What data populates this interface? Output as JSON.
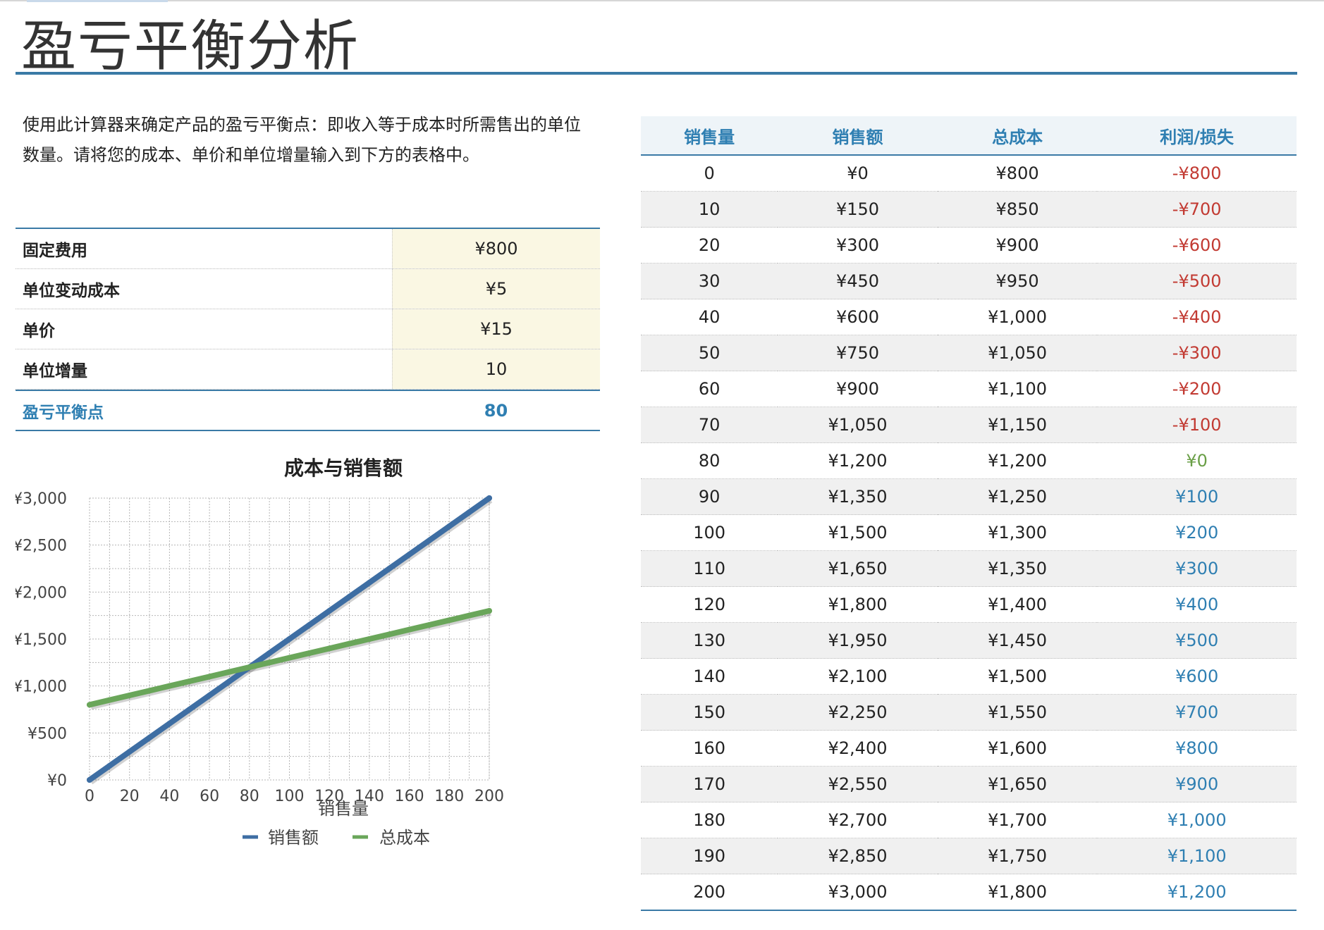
{
  "title": "盈亏平衡分析",
  "description": "使用此计算器来确定产品的盈亏平衡点：即收入等于成本时所需售出的单位数量。请将您的成本、单价和单位增量输入到下方的表格中。",
  "inputs": [
    {
      "label": "固定费用",
      "value": "¥800"
    },
    {
      "label": "单位变动成本",
      "value": "¥5"
    },
    {
      "label": "单价",
      "value": "¥15"
    },
    {
      "label": "单位增量",
      "value": "10"
    }
  ],
  "result": {
    "label": "盈亏平衡点",
    "value": "80"
  },
  "table": {
    "headers": [
      "销售量",
      "销售额",
      "总成本",
      "利润/损失"
    ],
    "rows": [
      [
        "0",
        "¥0",
        "¥800",
        "-¥800"
      ],
      [
        "10",
        "¥150",
        "¥850",
        "-¥700"
      ],
      [
        "20",
        "¥300",
        "¥900",
        "-¥600"
      ],
      [
        "30",
        "¥450",
        "¥950",
        "-¥500"
      ],
      [
        "40",
        "¥600",
        "¥1,000",
        "-¥400"
      ],
      [
        "50",
        "¥750",
        "¥1,050",
        "-¥300"
      ],
      [
        "60",
        "¥900",
        "¥1,100",
        "-¥200"
      ],
      [
        "70",
        "¥1,050",
        "¥1,150",
        "-¥100"
      ],
      [
        "80",
        "¥1,200",
        "¥1,200",
        "¥0"
      ],
      [
        "90",
        "¥1,350",
        "¥1,250",
        "¥100"
      ],
      [
        "100",
        "¥1,500",
        "¥1,300",
        "¥200"
      ],
      [
        "110",
        "¥1,650",
        "¥1,350",
        "¥300"
      ],
      [
        "120",
        "¥1,800",
        "¥1,400",
        "¥400"
      ],
      [
        "130",
        "¥1,950",
        "¥1,450",
        "¥500"
      ],
      [
        "140",
        "¥2,100",
        "¥1,500",
        "¥600"
      ],
      [
        "150",
        "¥2,250",
        "¥1,550",
        "¥700"
      ],
      [
        "160",
        "¥2,400",
        "¥1,600",
        "¥800"
      ],
      [
        "170",
        "¥2,550",
        "¥1,650",
        "¥900"
      ],
      [
        "180",
        "¥2,700",
        "¥1,700",
        "¥1,000"
      ],
      [
        "190",
        "¥2,850",
        "¥1,750",
        "¥1,100"
      ],
      [
        "200",
        "¥3,000",
        "¥1,800",
        "¥1,200"
      ]
    ]
  },
  "colors": {
    "accent": "#3a7aa6",
    "loss": "#c23a32",
    "profit": "#2f7fb2",
    "breakeven": "#6a9f47",
    "input_fill": "#faf7e3"
  },
  "chart_data": {
    "type": "line",
    "title": "成本与销售额",
    "xlabel": "销售量",
    "ylabel": "",
    "x": [
      0,
      10,
      20,
      30,
      40,
      50,
      60,
      70,
      80,
      90,
      100,
      110,
      120,
      130,
      140,
      150,
      160,
      170,
      180,
      190,
      200
    ],
    "xlim": [
      0,
      200
    ],
    "ylim": [
      0,
      3000
    ],
    "x_ticks": [
      "0",
      "20",
      "40",
      "60",
      "80",
      "100",
      "120",
      "140",
      "160",
      "180",
      "200"
    ],
    "y_ticks": [
      "¥0",
      "¥500",
      "¥1,000",
      "¥1,500",
      "¥2,000",
      "¥2,500",
      "¥3,000"
    ],
    "grid": true,
    "legend_position": "bottom",
    "series": [
      {
        "name": "销售额",
        "color": "#3e6ea3",
        "values": [
          0,
          150,
          300,
          450,
          600,
          750,
          900,
          1050,
          1200,
          1350,
          1500,
          1650,
          1800,
          1950,
          2100,
          2250,
          2400,
          2550,
          2700,
          2850,
          3000
        ]
      },
      {
        "name": "总成本",
        "color": "#6aa65a",
        "values": [
          800,
          850,
          900,
          950,
          1000,
          1050,
          1100,
          1150,
          1200,
          1250,
          1300,
          1350,
          1400,
          1450,
          1500,
          1550,
          1600,
          1650,
          1700,
          1750,
          1800
        ]
      }
    ]
  }
}
